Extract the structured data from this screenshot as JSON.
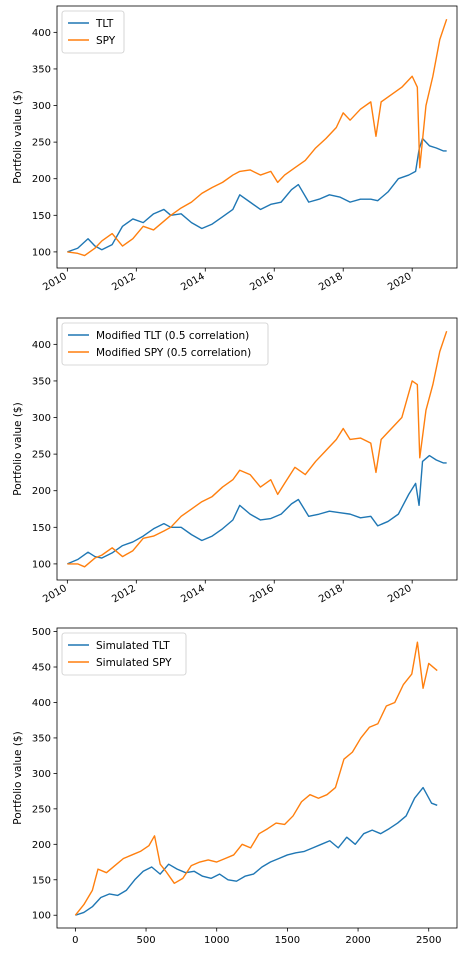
{
  "colors": {
    "blue": "#1f77b4",
    "orange": "#ff7f0e",
    "frame": "#000000"
  },
  "chart_data": [
    {
      "type": "line",
      "xlabel": "",
      "ylabel": "Portfolio value ($)",
      "xticks": [
        2010,
        2012,
        2014,
        2016,
        2018,
        2020
      ],
      "xtick_labels": [
        "2010",
        "2012",
        "2014",
        "2016",
        "2018",
        "2020"
      ],
      "xtick_rotation": "rotated",
      "yticks": [
        100,
        150,
        200,
        250,
        300,
        350,
        400
      ],
      "yticks_labels": [
        "100",
        "150",
        "200",
        "250",
        "300",
        "350",
        "400"
      ],
      "xlim": [
        2009.7,
        2021.3
      ],
      "ylim": [
        78,
        436
      ],
      "legend": "top-left",
      "series": [
        {
          "name": "TLT",
          "color": "#1f77b4",
          "x": [
            2010.0,
            2010.3,
            2010.6,
            2010.8,
            2011.0,
            2011.3,
            2011.6,
            2011.9,
            2012.2,
            2012.5,
            2012.8,
            2013.0,
            2013.3,
            2013.6,
            2013.9,
            2014.2,
            2014.5,
            2014.8,
            2015.0,
            2015.3,
            2015.6,
            2015.9,
            2016.2,
            2016.5,
            2016.7,
            2017.0,
            2017.3,
            2017.6,
            2017.9,
            2018.2,
            2018.5,
            2018.8,
            2019.0,
            2019.3,
            2019.6,
            2019.9,
            2020.1,
            2020.2,
            2020.3,
            2020.5,
            2020.7,
            2020.9,
            2021.0
          ],
          "y": [
            100,
            105,
            118,
            108,
            103,
            110,
            135,
            145,
            140,
            152,
            158,
            150,
            152,
            140,
            132,
            138,
            148,
            158,
            178,
            168,
            158,
            165,
            168,
            185,
            192,
            168,
            172,
            178,
            175,
            168,
            172,
            172,
            170,
            182,
            200,
            205,
            210,
            240,
            255,
            245,
            242,
            238,
            238
          ]
        },
        {
          "name": "SPY",
          "color": "#ff7f0e",
          "x": [
            2010.0,
            2010.3,
            2010.5,
            2010.8,
            2011.0,
            2011.3,
            2011.6,
            2011.9,
            2012.2,
            2012.5,
            2012.8,
            2013.0,
            2013.3,
            2013.6,
            2013.9,
            2014.2,
            2014.5,
            2014.8,
            2015.0,
            2015.3,
            2015.6,
            2015.9,
            2016.1,
            2016.3,
            2016.6,
            2016.9,
            2017.2,
            2017.5,
            2017.8,
            2018.0,
            2018.2,
            2018.5,
            2018.8,
            2018.95,
            2019.1,
            2019.4,
            2019.7,
            2020.0,
            2020.15,
            2020.22,
            2020.4,
            2020.6,
            2020.8,
            2021.0
          ],
          "y": [
            100,
            98,
            95,
            105,
            115,
            125,
            108,
            118,
            135,
            130,
            142,
            150,
            160,
            168,
            180,
            188,
            195,
            205,
            210,
            212,
            205,
            210,
            195,
            205,
            215,
            225,
            242,
            255,
            270,
            290,
            280,
            295,
            305,
            258,
            305,
            315,
            325,
            340,
            325,
            215,
            300,
            340,
            390,
            418
          ]
        }
      ]
    },
    {
      "type": "line",
      "xlabel": "",
      "ylabel": "Portfolio value ($)",
      "xticks": [
        2010,
        2012,
        2014,
        2016,
        2018,
        2020
      ],
      "xtick_labels": [
        "2010",
        "2012",
        "2014",
        "2016",
        "2018",
        "2020"
      ],
      "xtick_rotation": "rotated",
      "yticks": [
        100,
        150,
        200,
        250,
        300,
        350,
        400
      ],
      "yticks_labels": [
        "100",
        "150",
        "200",
        "250",
        "300",
        "350",
        "400"
      ],
      "xlim": [
        2009.7,
        2021.3
      ],
      "ylim": [
        78,
        436
      ],
      "legend": "top-left",
      "series": [
        {
          "name": "Modified TLT (0.5 correlation)",
          "color": "#1f77b4",
          "x": [
            2010.0,
            2010.3,
            2010.6,
            2010.8,
            2011.0,
            2011.3,
            2011.6,
            2011.9,
            2012.2,
            2012.5,
            2012.8,
            2013.0,
            2013.3,
            2013.6,
            2013.9,
            2014.2,
            2014.5,
            2014.8,
            2015.0,
            2015.3,
            2015.6,
            2015.9,
            2016.2,
            2016.5,
            2016.7,
            2017.0,
            2017.3,
            2017.6,
            2017.9,
            2018.2,
            2018.5,
            2018.8,
            2019.0,
            2019.3,
            2019.6,
            2019.9,
            2020.1,
            2020.2,
            2020.3,
            2020.5,
            2020.7,
            2020.9,
            2021.0
          ],
          "y": [
            100,
            106,
            116,
            110,
            108,
            115,
            125,
            130,
            138,
            148,
            155,
            150,
            150,
            140,
            132,
            138,
            148,
            160,
            180,
            168,
            160,
            162,
            168,
            182,
            188,
            165,
            168,
            172,
            170,
            168,
            163,
            165,
            152,
            158,
            168,
            195,
            210,
            180,
            240,
            248,
            242,
            238,
            238
          ]
        },
        {
          "name": "Modified SPY (0.5 correlation)",
          "color": "#ff7f0e",
          "x": [
            2010.0,
            2010.3,
            2010.5,
            2010.8,
            2011.0,
            2011.3,
            2011.6,
            2011.9,
            2012.2,
            2012.5,
            2012.8,
            2013.0,
            2013.3,
            2013.6,
            2013.9,
            2014.2,
            2014.5,
            2014.8,
            2015.0,
            2015.3,
            2015.6,
            2015.9,
            2016.1,
            2016.3,
            2016.6,
            2016.9,
            2017.2,
            2017.5,
            2017.8,
            2018.0,
            2018.2,
            2018.5,
            2018.8,
            2018.95,
            2019.1,
            2019.4,
            2019.7,
            2020.0,
            2020.15,
            2020.22,
            2020.4,
            2020.6,
            2020.8,
            2021.0
          ],
          "y": [
            100,
            100,
            96,
            108,
            112,
            122,
            110,
            118,
            135,
            138,
            145,
            150,
            165,
            175,
            185,
            192,
            205,
            215,
            228,
            222,
            205,
            215,
            195,
            210,
            232,
            222,
            240,
            255,
            270,
            285,
            270,
            272,
            265,
            225,
            270,
            285,
            300,
            350,
            345,
            245,
            310,
            345,
            390,
            418
          ]
        }
      ]
    },
    {
      "type": "line",
      "xlabel": "",
      "ylabel": "Portfolio value ($)",
      "xticks": [
        0,
        500,
        1000,
        1500,
        2000,
        2500
      ],
      "xtick_labels": [
        "0",
        "500",
        "1000",
        "1500",
        "2000",
        "2500"
      ],
      "yticks": [
        100,
        150,
        200,
        250,
        300,
        350,
        400,
        450,
        500
      ],
      "yticks_labels": [
        "100",
        "150",
        "200",
        "250",
        "300",
        "350",
        "400",
        "450",
        "500"
      ],
      "xlim": [
        -130,
        2700
      ],
      "ylim": [
        82,
        505
      ],
      "legend": "top-left",
      "series": [
        {
          "name": "Simulated TLT",
          "color": "#1f77b4",
          "x": [
            0,
            60,
            120,
            180,
            240,
            300,
            360,
            420,
            480,
            540,
            600,
            660,
            720,
            780,
            840,
            900,
            960,
            1020,
            1080,
            1140,
            1200,
            1260,
            1320,
            1380,
            1440,
            1500,
            1560,
            1620,
            1680,
            1740,
            1800,
            1860,
            1920,
            1980,
            2040,
            2100,
            2160,
            2220,
            2280,
            2340,
            2400,
            2460,
            2520,
            2560
          ],
          "y": [
            100,
            104,
            112,
            125,
            130,
            128,
            135,
            150,
            162,
            168,
            158,
            172,
            165,
            160,
            162,
            155,
            152,
            158,
            150,
            148,
            155,
            158,
            168,
            175,
            180,
            185,
            188,
            190,
            195,
            200,
            205,
            195,
            210,
            200,
            215,
            220,
            215,
            222,
            230,
            240,
            265,
            280,
            258,
            255
          ]
        },
        {
          "name": "Simulated SPY",
          "color": "#ff7f0e",
          "x": [
            0,
            60,
            120,
            160,
            220,
            280,
            340,
            400,
            460,
            520,
            560,
            600,
            640,
            700,
            760,
            820,
            880,
            940,
            1000,
            1060,
            1120,
            1180,
            1240,
            1300,
            1360,
            1420,
            1480,
            1540,
            1600,
            1660,
            1720,
            1780,
            1840,
            1900,
            1960,
            2020,
            2080,
            2140,
            2200,
            2260,
            2320,
            2380,
            2420,
            2460,
            2500,
            2560
          ],
          "y": [
            100,
            115,
            135,
            165,
            160,
            170,
            180,
            185,
            190,
            198,
            212,
            172,
            162,
            145,
            152,
            170,
            175,
            178,
            175,
            180,
            185,
            200,
            195,
            215,
            222,
            230,
            228,
            240,
            260,
            270,
            265,
            270,
            280,
            320,
            330,
            350,
            365,
            370,
            395,
            400,
            425,
            440,
            485,
            420,
            455,
            445
          ]
        }
      ]
    }
  ]
}
